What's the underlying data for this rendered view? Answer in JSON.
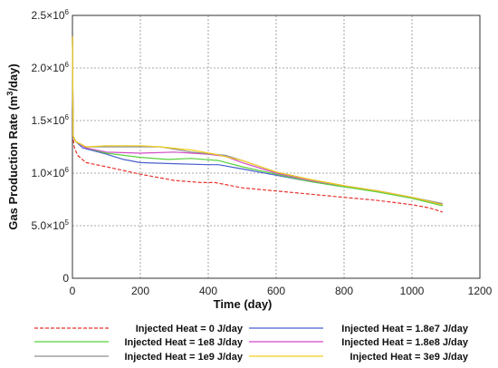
{
  "chart_data": {
    "type": "line",
    "title": "",
    "xlabel": "Time (day)",
    "ylabel_parts": {
      "main": "Gas Production Rate (m",
      "sup": "3",
      "end": "/day)"
    },
    "xlim": [
      0,
      1200
    ],
    "ylim": [
      0,
      2500000
    ],
    "grid": true,
    "x_ticks": [
      {
        "value": 0,
        "label": "0"
      },
      {
        "value": 200,
        "label": "200"
      },
      {
        "value": 400,
        "label": "400"
      },
      {
        "value": 600,
        "label": "600"
      },
      {
        "value": 800,
        "label": "800"
      },
      {
        "value": 1000,
        "label": "1000"
      },
      {
        "value": 1200,
        "label": "1200"
      }
    ],
    "y_ticks": [
      {
        "value": 0,
        "mantissa": "0",
        "sup": ""
      },
      {
        "value": 500000,
        "mantissa": "5.0×10",
        "sup": "5"
      },
      {
        "value": 1000000,
        "mantissa": "1.0×10",
        "sup": "6"
      },
      {
        "value": 1500000,
        "mantissa": "1.5×10",
        "sup": "6"
      },
      {
        "value": 2000000,
        "mantissa": "2.0×10",
        "sup": "6"
      },
      {
        "value": 2500000,
        "mantissa": "2.5×10",
        "sup": "6"
      }
    ],
    "legend_position": "bottom",
    "series": [
      {
        "name": "Injected Heat = 0 J/day",
        "color": "#e8322c",
        "dash": true,
        "points": [
          [
            0,
            2300000
          ],
          [
            2,
            1330000
          ],
          [
            5,
            1250000
          ],
          [
            15,
            1170000
          ],
          [
            40,
            1100000
          ],
          [
            100,
            1060000
          ],
          [
            200,
            990000
          ],
          [
            300,
            930000
          ],
          [
            380,
            910000
          ],
          [
            420,
            910000
          ],
          [
            500,
            860000
          ],
          [
            600,
            830000
          ],
          [
            700,
            800000
          ],
          [
            800,
            770000
          ],
          [
            900,
            740000
          ],
          [
            1000,
            700000
          ],
          [
            1050,
            670000
          ],
          [
            1090,
            630000
          ]
        ]
      },
      {
        "name": "Injected Heat = 1.8e7 J/day",
        "color": "#4a5fcf",
        "dash": false,
        "points": [
          [
            0,
            2300000
          ],
          [
            2,
            1350000
          ],
          [
            10,
            1300000
          ],
          [
            30,
            1240000
          ],
          [
            100,
            1180000
          ],
          [
            150,
            1130000
          ],
          [
            200,
            1100000
          ],
          [
            300,
            1090000
          ],
          [
            400,
            1080000
          ],
          [
            430,
            1080000
          ],
          [
            500,
            1040000
          ],
          [
            600,
            980000
          ],
          [
            700,
            920000
          ],
          [
            800,
            870000
          ],
          [
            900,
            830000
          ],
          [
            1000,
            770000
          ],
          [
            1090,
            700000
          ]
        ]
      },
      {
        "name": "Injected Heat = 1e8 J/day",
        "color": "#58d23c",
        "dash": false,
        "points": [
          [
            0,
            2300000
          ],
          [
            2,
            1350000
          ],
          [
            10,
            1300000
          ],
          [
            40,
            1240000
          ],
          [
            100,
            1190000
          ],
          [
            200,
            1150000
          ],
          [
            280,
            1130000
          ],
          [
            350,
            1140000
          ],
          [
            430,
            1120000
          ],
          [
            500,
            1060000
          ],
          [
            600,
            990000
          ],
          [
            700,
            920000
          ],
          [
            800,
            870000
          ],
          [
            900,
            820000
          ],
          [
            1000,
            760000
          ],
          [
            1090,
            690000
          ]
        ]
      },
      {
        "name": "Injected Heat = 1.8e8 J/day",
        "color": "#d24bc8",
        "dash": false,
        "points": [
          [
            0,
            2300000
          ],
          [
            2,
            1350000
          ],
          [
            10,
            1300000
          ],
          [
            40,
            1240000
          ],
          [
            100,
            1200000
          ],
          [
            200,
            1190000
          ],
          [
            300,
            1200000
          ],
          [
            400,
            1180000
          ],
          [
            450,
            1160000
          ],
          [
            500,
            1100000
          ],
          [
            600,
            1000000
          ],
          [
            700,
            930000
          ],
          [
            800,
            880000
          ],
          [
            900,
            830000
          ],
          [
            1000,
            770000
          ],
          [
            1090,
            700000
          ]
        ]
      },
      {
        "name": "Injected Heat = 1e9 J/day",
        "color": "#8f8f8f",
        "dash": false,
        "points": [
          [
            0,
            2300000
          ],
          [
            2,
            1350000
          ],
          [
            10,
            1300000
          ],
          [
            40,
            1250000
          ],
          [
            100,
            1250000
          ],
          [
            200,
            1250000
          ],
          [
            260,
            1250000
          ],
          [
            350,
            1200000
          ],
          [
            450,
            1170000
          ],
          [
            500,
            1120000
          ],
          [
            600,
            1010000
          ],
          [
            700,
            940000
          ],
          [
            800,
            880000
          ],
          [
            900,
            830000
          ],
          [
            1000,
            770000
          ],
          [
            1090,
            710000
          ]
        ]
      },
      {
        "name": "Injected Heat = 3e9 J/day",
        "color": "#f0cf1a",
        "dash": false,
        "points": [
          [
            0,
            2300000
          ],
          [
            2,
            1350000
          ],
          [
            10,
            1300000
          ],
          [
            40,
            1250000
          ],
          [
            100,
            1260000
          ],
          [
            200,
            1260000
          ],
          [
            260,
            1250000
          ],
          [
            350,
            1220000
          ],
          [
            420,
            1180000
          ],
          [
            500,
            1120000
          ],
          [
            600,
            1010000
          ],
          [
            700,
            940000
          ],
          [
            800,
            880000
          ],
          [
            900,
            830000
          ],
          [
            1000,
            770000
          ],
          [
            1090,
            700000
          ]
        ]
      }
    ]
  }
}
